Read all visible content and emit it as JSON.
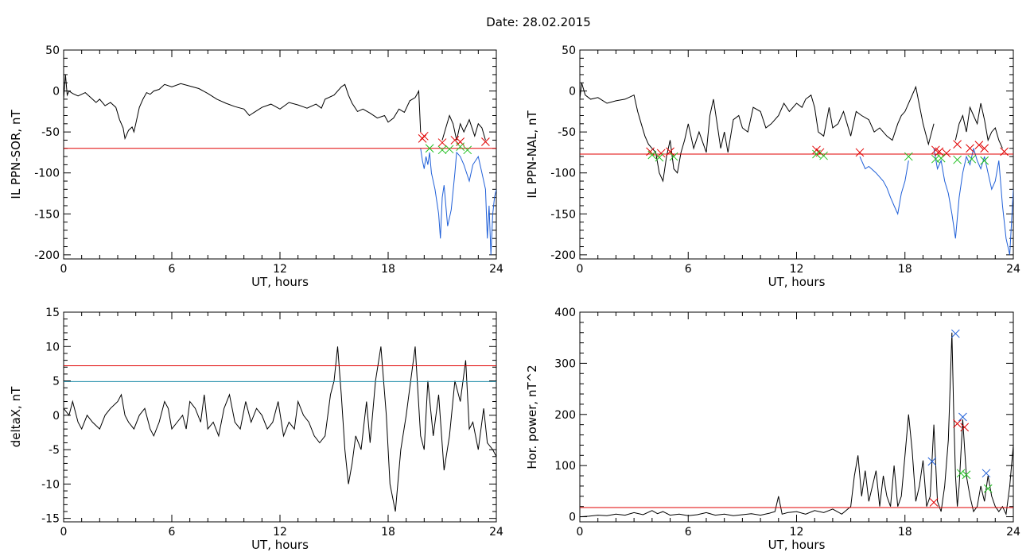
{
  "figure": {
    "title": "Date:  28.02.2015"
  },
  "chart_data": [
    {
      "id": "sor",
      "type": "line",
      "ylabel": "IL PPN-SOR, nT",
      "xlabel": "UT, hours",
      "xlim": [
        0,
        24
      ],
      "ylim": [
        -205,
        50
      ],
      "xticks": [
        0,
        6,
        12,
        18,
        24
      ],
      "yticks": [
        -200,
        -150,
        -100,
        -50,
        0,
        50
      ],
      "threshold": {
        "value": -70,
        "color": "#e00000"
      },
      "series": [
        {
          "color": "#000000",
          "x": [
            0,
            0.1,
            0.2,
            0.3,
            0.5,
            0.8,
            1.0,
            1.2,
            1.5,
            1.8,
            2.0,
            2.3,
            2.6,
            2.9,
            3.1,
            3.3,
            3.4,
            3.6,
            3.8,
            3.9,
            4.0,
            4.2,
            4.4,
            4.6,
            4.8,
            5.0,
            5.3,
            5.6,
            6.0,
            6.5,
            7.0,
            7.5,
            8.0,
            8.5,
            9.0,
            9.5,
            10.0,
            10.3,
            10.5,
            11.0,
            11.5,
            12.0,
            12.5,
            13.0,
            13.5,
            14.0,
            14.3,
            14.5,
            15.0,
            15.4,
            15.6,
            15.8,
            16.0,
            16.3,
            16.6,
            17.0,
            17.4,
            17.8,
            18.0,
            18.3,
            18.6,
            18.9,
            19.2,
            19.5,
            19.7,
            19.8
          ],
          "y": [
            -10,
            20,
            -5,
            0,
            -3,
            -6,
            -4,
            -2,
            -8,
            -14,
            -10,
            -18,
            -14,
            -20,
            -35,
            -45,
            -58,
            -48,
            -44,
            -50,
            -40,
            -20,
            -10,
            -2,
            -4,
            0,
            2,
            8,
            5,
            9,
            6,
            3,
            -3,
            -10,
            -15,
            -19,
            -22,
            -30,
            -27,
            -20,
            -16,
            -22,
            -14,
            -17,
            -21,
            -16,
            -21,
            -10,
            -5,
            5,
            8,
            -5,
            -15,
            -25,
            -22,
            -27,
            -33,
            -30,
            -38,
            -33,
            -22,
            -26,
            -12,
            -8,
            0,
            -50
          ]
        },
        {
          "color": "#1f5fd8",
          "x": [
            19.8,
            19.9,
            20.0,
            20.1,
            20.2,
            20.3,
            20.4,
            20.6,
            20.8,
            20.9,
            21.0,
            21.1,
            21.3,
            21.5,
            21.7,
            21.8,
            22.0,
            22.2,
            22.5,
            22.7,
            23.0,
            23.2,
            23.4,
            23.5,
            23.6,
            23.7,
            23.8,
            23.9,
            24.0
          ],
          "y": [
            -70,
            -85,
            -95,
            -80,
            -90,
            -75,
            -100,
            -120,
            -150,
            -180,
            -130,
            -115,
            -165,
            -145,
            -100,
            -75,
            -80,
            -90,
            -110,
            -90,
            -80,
            -100,
            -120,
            -180,
            -140,
            -200,
            -150,
            -130,
            -120
          ]
        },
        {
          "color": "#000000",
          "x": [
            21.0,
            21.2,
            21.4,
            21.6,
            21.8,
            22.0,
            22.2,
            22.5,
            22.8,
            23.0,
            23.2,
            23.4
          ],
          "y": [
            -60,
            -45,
            -30,
            -40,
            -60,
            -40,
            -50,
            -35,
            -55,
            -40,
            -45,
            -60
          ]
        }
      ],
      "markers": [
        {
          "color": "#e00000",
          "x": [
            19.9,
            20.0,
            21.0,
            21.7,
            22.0,
            23.4
          ],
          "y": [
            -58,
            -55,
            -63,
            -60,
            -62,
            -62
          ]
        },
        {
          "color": "#22c022",
          "x": [
            20.3,
            21.0,
            21.4,
            22.0,
            22.4
          ],
          "y": [
            -70,
            -72,
            -71,
            -68,
            -72
          ]
        }
      ]
    },
    {
      "id": "nal",
      "type": "line",
      "ylabel": "IL PPN-NAL, nT",
      "xlabel": "UT, hours",
      "xlim": [
        0,
        24
      ],
      "ylim": [
        -205,
        50
      ],
      "xticks": [
        0,
        6,
        12,
        18,
        24
      ],
      "yticks": [
        -200,
        -150,
        -100,
        -50,
        0,
        50
      ],
      "threshold": {
        "value": -77,
        "color": "#e00000"
      },
      "series": [
        {
          "color": "#000000",
          "x": [
            0,
            0.1,
            0.3,
            0.6,
            1.0,
            1.5,
            2.0,
            2.5,
            3.0,
            3.2,
            3.4,
            3.6,
            3.8,
            4.0,
            4.2,
            4.4,
            4.6,
            4.8,
            5.0,
            5.2,
            5.4,
            5.6,
            5.8,
            6.0,
            6.3,
            6.6,
            7.0,
            7.2,
            7.4,
            7.6,
            7.8,
            8.0,
            8.2,
            8.5,
            8.8,
            9.0,
            9.3,
            9.6,
            10.0,
            10.3,
            10.6,
            11.0,
            11.3,
            11.6,
            12.0,
            12.3,
            12.5,
            12.8,
            13.0,
            13.2,
            13.5,
            13.8,
            14.0,
            14.3,
            14.6,
            15.0,
            15.3,
            15.6,
            16.0,
            16.3,
            16.6,
            17.0,
            17.3,
            17.6,
            17.8,
            18.0,
            18.3,
            18.6,
            19.0,
            19.3,
            19.6
          ],
          "y": [
            -10,
            10,
            -5,
            -10,
            -8,
            -15,
            -12,
            -10,
            -5,
            -25,
            -40,
            -55,
            -65,
            -70,
            -75,
            -100,
            -110,
            -80,
            -60,
            -95,
            -100,
            -75,
            -60,
            -40,
            -70,
            -50,
            -75,
            -30,
            -10,
            -40,
            -70,
            -50,
            -75,
            -35,
            -30,
            -45,
            -50,
            -20,
            -25,
            -45,
            -40,
            -30,
            -15,
            -25,
            -15,
            -20,
            -10,
            -5,
            -20,
            -50,
            -55,
            -20,
            -45,
            -40,
            -25,
            -55,
            -25,
            -30,
            -35,
            -50,
            -45,
            -55,
            -60,
            -40,
            -30,
            -25,
            -10,
            5,
            -40,
            -65,
            -40
          ]
        },
        {
          "color": "#1f5fd8",
          "x": [
            15.5,
            15.8,
            16.0,
            16.4,
            16.8,
            17.0,
            17.2,
            17.4,
            17.6,
            17.8,
            18.0,
            18.2
          ],
          "y": [
            -80,
            -95,
            -92,
            -100,
            -110,
            -118,
            -130,
            -140,
            -150,
            -125,
            -110,
            -85
          ]
        },
        {
          "color": "#1f5fd8",
          "x": [
            19.6,
            19.8,
            20.0,
            20.2,
            20.4,
            20.6,
            20.8,
            21.0,
            21.2,
            21.4,
            21.6,
            21.8,
            22.0,
            22.2,
            22.4,
            22.6,
            22.8,
            23.0,
            23.2,
            23.4,
            23.6,
            23.8,
            24.0
          ],
          "y": [
            -70,
            -95,
            -85,
            -110,
            -125,
            -150,
            -180,
            -130,
            -100,
            -80,
            -90,
            -70,
            -85,
            -95,
            -80,
            -100,
            -120,
            -110,
            -85,
            -140,
            -180,
            -200,
            -120
          ]
        },
        {
          "color": "#000000",
          "x": [
            20.8,
            21.0,
            21.2,
            21.4,
            21.6,
            21.8,
            22.0,
            22.2,
            22.4,
            22.6,
            22.8,
            23.0,
            23.2,
            23.4
          ],
          "y": [
            -60,
            -40,
            -30,
            -50,
            -20,
            -30,
            -40,
            -15,
            -35,
            -60,
            -50,
            -45,
            -60,
            -70
          ]
        }
      ],
      "markers": [
        {
          "color": "#e00000",
          "x": [
            3.9,
            4.5,
            5.0,
            13.1,
            13.3,
            15.5,
            19.7,
            19.9,
            20.3,
            20.9,
            21.6,
            22.1,
            22.4,
            23.5
          ],
          "y": [
            -74,
            -76,
            -74,
            -72,
            -75,
            -75,
            -72,
            -74,
            -76,
            -65,
            -70,
            -66,
            -70,
            -74
          ]
        },
        {
          "color": "#22c022",
          "x": [
            4.0,
            4.4,
            5.2,
            13.1,
            13.5,
            18.2,
            19.7,
            20.0,
            20.9,
            21.7,
            22.4
          ],
          "y": [
            -78,
            -81,
            -80,
            -77,
            -79,
            -80,
            -83,
            -82,
            -84,
            -83,
            -85
          ]
        }
      ]
    },
    {
      "id": "deltax",
      "type": "line",
      "ylabel": "deltaX, nT",
      "xlabel": "UT, hours",
      "xlim": [
        0,
        24
      ],
      "ylim": [
        -15.5,
        15
      ],
      "xticks": [
        0,
        6,
        12,
        18,
        24
      ],
      "yticks": [
        -15,
        -10,
        -5,
        0,
        5,
        10,
        15
      ],
      "thresholds": [
        {
          "value": 7.2,
          "color": "#e00000"
        },
        {
          "value": 4.9,
          "color": "#1f8ba8"
        }
      ],
      "series": [
        {
          "color": "#000000",
          "x": [
            0,
            0.3,
            0.5,
            0.8,
            1.0,
            1.3,
            1.6,
            2.0,
            2.3,
            2.6,
            3.0,
            3.2,
            3.4,
            3.6,
            3.9,
            4.2,
            4.5,
            4.8,
            5.0,
            5.3,
            5.6,
            5.8,
            6.0,
            6.3,
            6.6,
            6.8,
            7.0,
            7.3,
            7.6,
            7.8,
            8.0,
            8.3,
            8.6,
            8.9,
            9.2,
            9.5,
            9.8,
            10.1,
            10.4,
            10.7,
            11.0,
            11.3,
            11.6,
            11.9,
            12.2,
            12.5,
            12.8,
            13.0,
            13.3,
            13.6,
            13.9,
            14.2,
            14.5,
            14.8,
            15.0,
            15.2,
            15.4,
            15.6,
            15.8,
            16.0,
            16.2,
            16.5,
            16.8,
            17.0,
            17.3,
            17.6,
            17.9,
            18.1,
            18.4,
            18.7,
            19.0,
            19.2,
            19.5,
            19.8,
            20.0,
            20.2,
            20.5,
            20.8,
            21.1,
            21.4,
            21.7,
            22.0,
            22.3,
            22.5,
            22.7,
            23.0,
            23.3,
            23.5,
            23.8,
            24.0
          ],
          "y": [
            1,
            0,
            2,
            -1,
            -2,
            0,
            -1,
            -2,
            0,
            1,
            2,
            3,
            0,
            -1,
            -2,
            0,
            1,
            -2,
            -3,
            -1,
            2,
            1,
            -2,
            -1,
            0,
            -2,
            2,
            1,
            -1,
            3,
            -2,
            -1,
            -3,
            1,
            3,
            -1,
            -2,
            2,
            -1,
            1,
            0,
            -2,
            -1,
            2,
            -3,
            -1,
            -2,
            2,
            0,
            -1,
            -3,
            -4,
            -3,
            3,
            5,
            10,
            3,
            -5,
            -10,
            -7,
            -3,
            -5,
            2,
            -4,
            5,
            10,
            0,
            -10,
            -14,
            -5,
            0,
            4,
            10,
            -3,
            -5,
            5,
            -3,
            3,
            -8,
            -3,
            5,
            2,
            8,
            -2,
            -1,
            -5,
            1,
            -4,
            -5,
            -6
          ]
        }
      ],
      "markers": []
    },
    {
      "id": "power",
      "type": "line",
      "ylabel": "Hor. power, nT^2",
      "xlabel": "UT, hours",
      "xlim": [
        0,
        24
      ],
      "ylim": [
        -10,
        400
      ],
      "xticks": [
        0,
        6,
        12,
        18,
        24
      ],
      "yticks": [
        0,
        100,
        200,
        300,
        400
      ],
      "threshold": {
        "value": 18,
        "color": "#e00000"
      },
      "series": [
        {
          "color": "#000000",
          "x": [
            0,
            0.5,
            1.0,
            1.5,
            2.0,
            2.5,
            3.0,
            3.5,
            4.0,
            4.3,
            4.6,
            5.0,
            5.5,
            6.0,
            6.5,
            7.0,
            7.5,
            8.0,
            8.5,
            9.0,
            9.5,
            10.0,
            10.5,
            10.8,
            11.0,
            11.2,
            11.5,
            12.0,
            12.5,
            13.0,
            13.5,
            14.0,
            14.5,
            15.0,
            15.2,
            15.4,
            15.6,
            15.8,
            16.0,
            16.2,
            16.4,
            16.6,
            16.8,
            17.0,
            17.2,
            17.4,
            17.6,
            17.8,
            18.0,
            18.2,
            18.4,
            18.6,
            18.8,
            19.0,
            19.2,
            19.4,
            19.6,
            19.8,
            20.0,
            20.2,
            20.4,
            20.6,
            20.7,
            20.8,
            20.9,
            21.0,
            21.2,
            21.4,
            21.6,
            21.8,
            22.0,
            22.2,
            22.4,
            22.6,
            22.8,
            23.0,
            23.2,
            23.4,
            23.6,
            23.8,
            24.0
          ],
          "y": [
            0,
            1,
            3,
            2,
            5,
            3,
            8,
            4,
            12,
            6,
            10,
            3,
            5,
            2,
            4,
            8,
            3,
            5,
            2,
            4,
            6,
            3,
            7,
            10,
            40,
            5,
            8,
            10,
            5,
            12,
            8,
            15,
            5,
            20,
            80,
            120,
            40,
            90,
            30,
            60,
            90,
            20,
            80,
            40,
            20,
            100,
            20,
            40,
            120,
            200,
            130,
            30,
            60,
            110,
            20,
            40,
            180,
            30,
            10,
            60,
            150,
            360,
            200,
            80,
            20,
            60,
            190,
            80,
            40,
            10,
            20,
            60,
            30,
            80,
            40,
            20,
            10,
            20,
            5,
            60,
            140
          ]
        }
      ],
      "markers": [
        {
          "color": "#1f5fd8",
          "x": [
            19.5,
            20.8,
            21.2,
            22.5
          ],
          "y": [
            108,
            358,
            195,
            85
          ]
        },
        {
          "color": "#e00000",
          "x": [
            19.6,
            20.9,
            21.3
          ],
          "y": [
            28,
            182,
            175
          ]
        },
        {
          "color": "#22c022",
          "x": [
            21.1,
            21.4,
            22.6
          ],
          "y": [
            85,
            82,
            55
          ]
        }
      ]
    }
  ]
}
